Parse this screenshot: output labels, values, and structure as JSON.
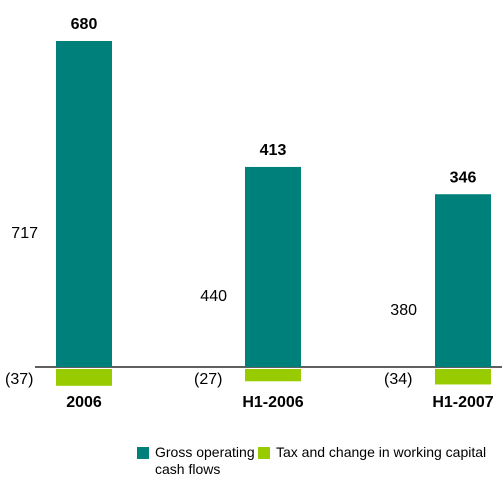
{
  "chart_data": {
    "type": "bar",
    "categories": [
      "2006",
      "H1-2006",
      "H1-2007"
    ],
    "totals": [
      680,
      413,
      346
    ],
    "series": [
      {
        "name": "Gross operating cash flows",
        "color": "#00807a",
        "values": [
          717,
          440,
          380
        ]
      },
      {
        "name": "Tax and change in working capital",
        "color": "#99cc00",
        "values": [
          -37,
          -27,
          -34
        ],
        "value_labels": [
          "(37)",
          "(27)",
          "(34)"
        ]
      }
    ]
  }
}
